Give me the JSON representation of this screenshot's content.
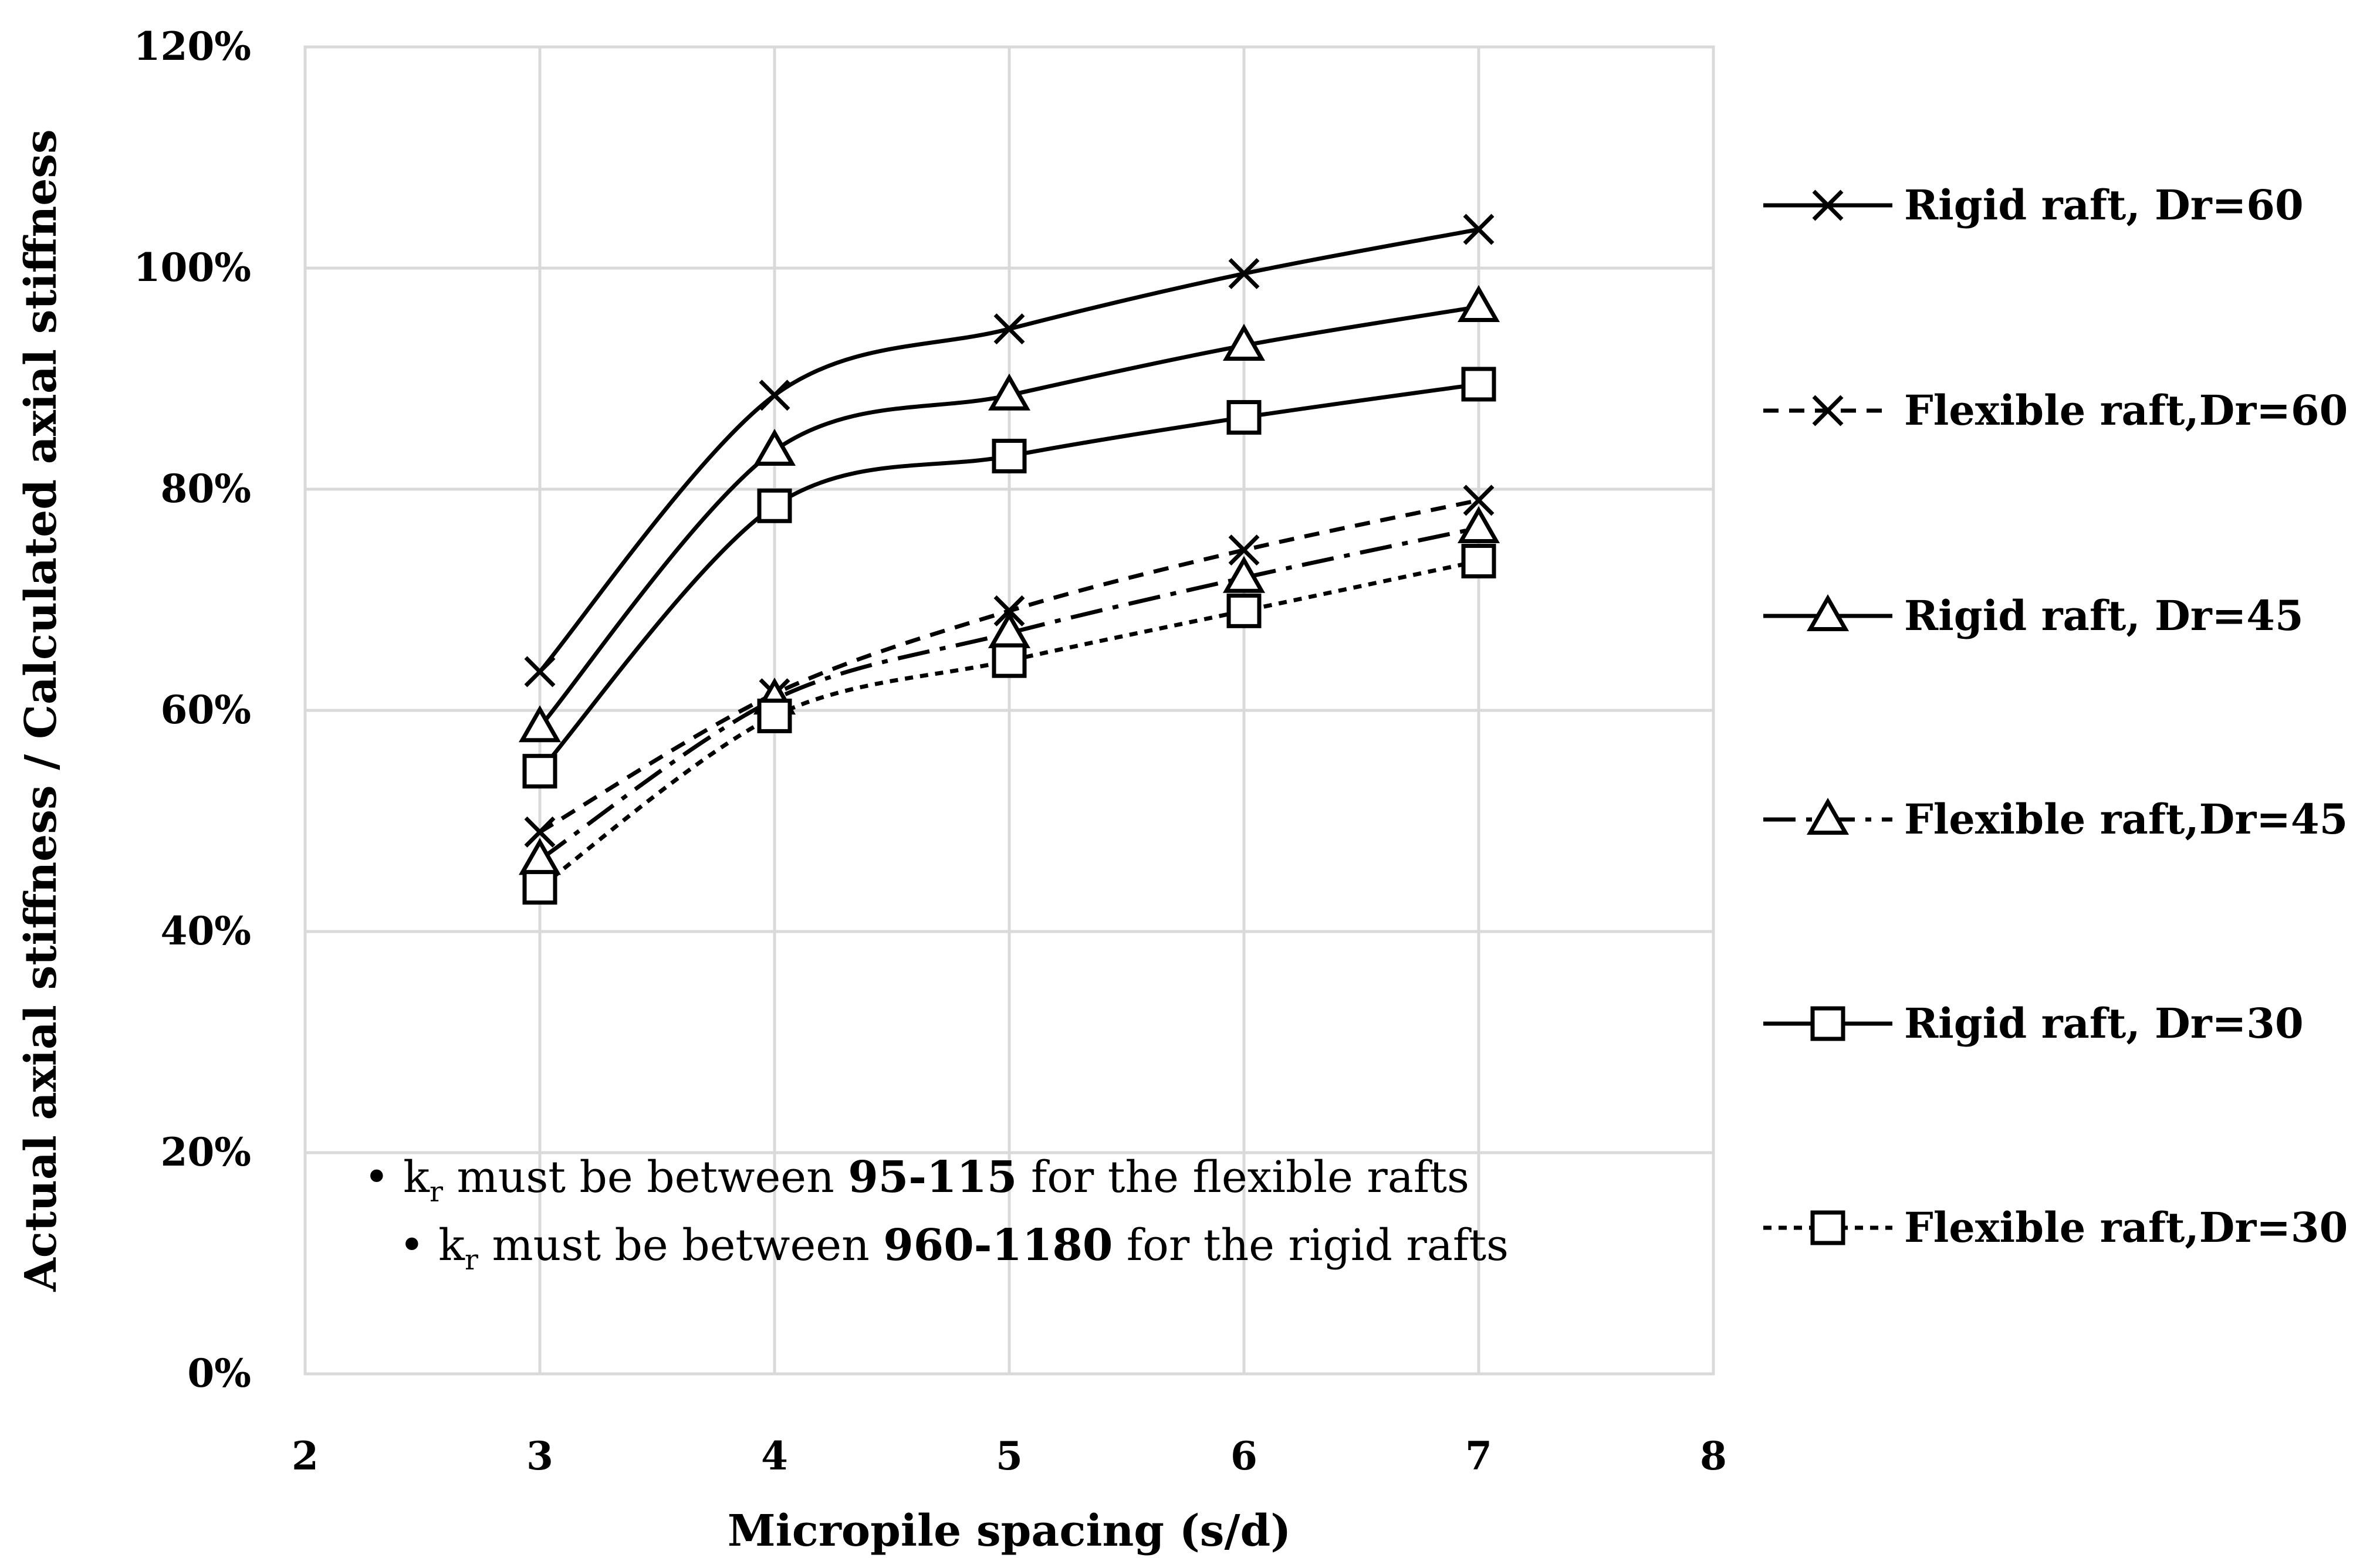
{
  "chart_data": {
    "type": "line",
    "title": "",
    "xlabel": "Micropile spacing (s/d)",
    "ylabel": "Actual axial stiffness / Calculated axial stiffness",
    "xlim": [
      2,
      8
    ],
    "ylim": [
      0,
      120
    ],
    "x_ticks": [
      "2",
      "3",
      "4",
      "5",
      "6",
      "7",
      "8"
    ],
    "y_ticks": [
      "0%",
      "20%",
      "40%",
      "60%",
      "80%",
      "100%",
      "120%"
    ],
    "grid": true,
    "legend_position": "right",
    "x": [
      3,
      4,
      5,
      6,
      7
    ],
    "series": [
      {
        "name": "Rigid raft, Dr=60",
        "marker": "x",
        "line": "solid",
        "values": [
          63.5,
          88.5,
          94.5,
          99.5,
          103.5
        ]
      },
      {
        "name": "Flexible raft,Dr=60",
        "marker": "x",
        "line": "dashed",
        "values": [
          49,
          61.5,
          69,
          74.5,
          79
        ]
      },
      {
        "name": "Rigid raft, Dr=45",
        "marker": "triangle",
        "line": "solid",
        "values": [
          58.5,
          83.5,
          88.5,
          93,
          96.5
        ]
      },
      {
        "name": "Flexible raft,Dr=45",
        "marker": "triangle",
        "line": "dashdot",
        "values": [
          46.5,
          61,
          67,
          72,
          76.5
        ]
      },
      {
        "name": "Rigid raft, Dr=30",
        "marker": "square",
        "line": "solid",
        "values": [
          54.5,
          78.5,
          83,
          86.5,
          89.5
        ]
      },
      {
        "name": "Flexible raft,Dr=30",
        "marker": "square",
        "line": "dotted",
        "values": [
          44,
          59.5,
          64.5,
          69,
          73.5
        ]
      }
    ],
    "annotations": [
      {
        "bullet": "•",
        "k": "k",
        "sub": "r",
        "text_before": " must be between ",
        "bold": "95-115",
        "text_after": " for the flexible rafts"
      },
      {
        "bullet": "•",
        "k": "k",
        "sub": "r",
        "text_before": " must be between ",
        "bold": "960-1180",
        "text_after": "  for the rigid rafts"
      }
    ]
  }
}
